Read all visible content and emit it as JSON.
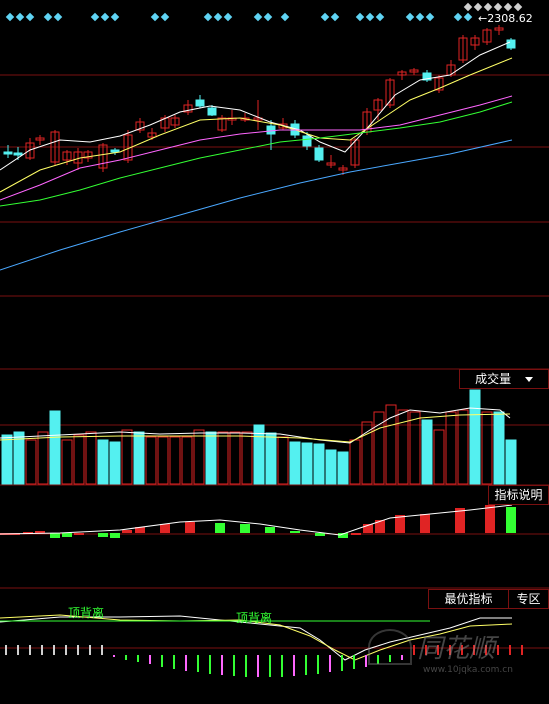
{
  "price_panel": {
    "high_price_label": "2308.62",
    "arrow": "←"
  },
  "volume_panel": {
    "title": "成交量",
    "dropdown_icon": "triangle-down-icon"
  },
  "indicator_panel": {
    "explain_button": "指标说明"
  },
  "bottom_panel": {
    "best_indicator_button": "最优指标",
    "zone_button": "专区",
    "divergence_labels": [
      "顶背离",
      "顶背离"
    ]
  },
  "watermark": {
    "brand": "同花顺",
    "url": "www.10jqka.com.cn"
  },
  "colors": {
    "up": "#e02424",
    "down": "#54f0f0",
    "ma5": "#ffffff",
    "ma10": "#ffff66",
    "ma20": "#ff66ff",
    "ma30": "#33ff33",
    "ma60": "#4aa8ff",
    "grid": "#7a1010",
    "signal_diamond": "#5fd3f3"
  }
}
